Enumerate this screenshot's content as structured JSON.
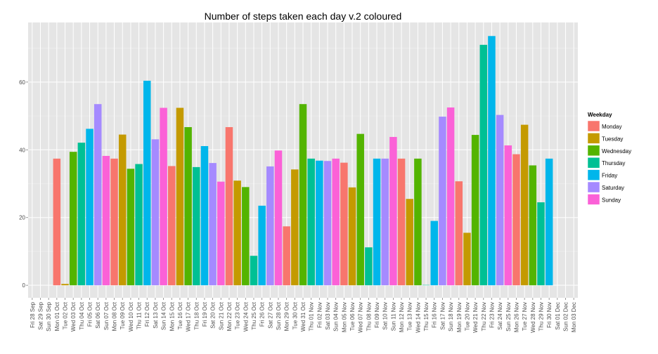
{
  "chart_data": {
    "type": "bar",
    "title": "Number of steps taken each day v.2 coloured",
    "xlabel": "",
    "ylabel": "",
    "ylim": [
      -3.7,
      77.6
    ],
    "yticks": [
      0,
      20,
      40,
      60
    ],
    "legend": {
      "title": "Weekday",
      "position": "right",
      "entries": [
        {
          "name": "Monday",
          "color": "#F8766D"
        },
        {
          "name": "Tuesday",
          "color": "#C49A00"
        },
        {
          "name": "Wednesday",
          "color": "#53B400"
        },
        {
          "name": "Thursday",
          "color": "#00C094"
        },
        {
          "name": "Friday",
          "color": "#00B6EB"
        },
        {
          "name": "Saturday",
          "color": "#A58AFF"
        },
        {
          "name": "Sunday",
          "color": "#FB61D7"
        }
      ]
    },
    "categories": [
      "Fri 28 Sep",
      "Sat 29 Sep",
      "Sun 30 Sep",
      "Mon 01 Oct",
      "Tue 02 Oct",
      "Wed 03 Oct",
      "Thu 04 Oct",
      "Fri 05 Oct",
      "Sat 06 Oct",
      "Sun 07 Oct",
      "Mon 08 Oct",
      "Tue 09 Oct",
      "Wed 10 Oct",
      "Thu 11 Oct",
      "Fri 12 Oct",
      "Sat 13 Oct",
      "Sun 14 Oct",
      "Mon 15 Oct",
      "Tue 16 Oct",
      "Wed 17 Oct",
      "Thu 18 Oct",
      "Fri 19 Oct",
      "Sat 20 Oct",
      "Sun 21 Oct",
      "Mon 22 Oct",
      "Tue 23 Oct",
      "Wed 24 Oct",
      "Thu 25 Oct",
      "Fri 26 Oct",
      "Sat 27 Oct",
      "Sun 28 Oct",
      "Mon 29 Oct",
      "Tue 30 Oct",
      "Wed 31 Oct",
      "Thu 01 Nov",
      "Fri 02 Nov",
      "Sat 03 Nov",
      "Sun 04 Nov",
      "Mon 05 Nov",
      "Tue 06 Nov",
      "Wed 07 Nov",
      "Thu 08 Nov",
      "Fri 09 Nov",
      "Sat 10 Nov",
      "Sun 11 Nov",
      "Mon 12 Nov",
      "Tue 13 Nov",
      "Wed 14 Nov",
      "Thu 15 Nov",
      "Fri 16 Nov",
      "Sat 17 Nov",
      "Sun 18 Nov",
      "Mon 19 Nov",
      "Tue 20 Nov",
      "Wed 21 Nov",
      "Thu 22 Nov",
      "Fri 23 Nov",
      "Sat 24 Nov",
      "Sun 25 Nov",
      "Mon 26 Nov",
      "Tue 27 Nov",
      "Wed 28 Nov",
      "Thu 29 Nov",
      "Fri 30 Nov",
      "Sat 01 Dec",
      "Sun 02 Dec",
      "Mon 03 Dec"
    ],
    "values": [
      null,
      null,
      null,
      37.4,
      0.4,
      39.4,
      42.1,
      46.2,
      53.5,
      38.2,
      37.4,
      44.5,
      34.4,
      35.8,
      60.4,
      43.1,
      52.4,
      35.2,
      52.4,
      46.7,
      34.9,
      41.1,
      36.1,
      30.6,
      46.7,
      30.9,
      29.0,
      8.7,
      23.5,
      35.1,
      39.8,
      17.4,
      34.2,
      53.5,
      37.4,
      36.8,
      36.7,
      37.4,
      36.2,
      28.9,
      44.7,
      11.2,
      37.4,
      37.4,
      43.8,
      37.4,
      25.5,
      37.4,
      0.1,
      19.0,
      49.8,
      52.5,
      30.7,
      15.5,
      44.4,
      71.0,
      73.6,
      50.3,
      41.3,
      38.7,
      47.4,
      35.4,
      24.5,
      37.4,
      null,
      null,
      null
    ],
    "weekday": [
      "Friday",
      "Saturday",
      "Sunday",
      "Monday",
      "Tuesday",
      "Wednesday",
      "Thursday",
      "Friday",
      "Saturday",
      "Sunday",
      "Monday",
      "Tuesday",
      "Wednesday",
      "Thursday",
      "Friday",
      "Saturday",
      "Sunday",
      "Monday",
      "Tuesday",
      "Wednesday",
      "Thursday",
      "Friday",
      "Saturday",
      "Sunday",
      "Monday",
      "Tuesday",
      "Wednesday",
      "Thursday",
      "Friday",
      "Saturday",
      "Sunday",
      "Monday",
      "Tuesday",
      "Wednesday",
      "Thursday",
      "Friday",
      "Saturday",
      "Sunday",
      "Monday",
      "Tuesday",
      "Wednesday",
      "Thursday",
      "Friday",
      "Saturday",
      "Sunday",
      "Monday",
      "Tuesday",
      "Wednesday",
      "Thursday",
      "Friday",
      "Saturday",
      "Sunday",
      "Monday",
      "Tuesday",
      "Wednesday",
      "Thursday",
      "Friday",
      "Saturday",
      "Sunday",
      "Monday",
      "Tuesday",
      "Wednesday",
      "Thursday",
      "Friday",
      "Saturday",
      "Sunday",
      "Monday"
    ]
  }
}
